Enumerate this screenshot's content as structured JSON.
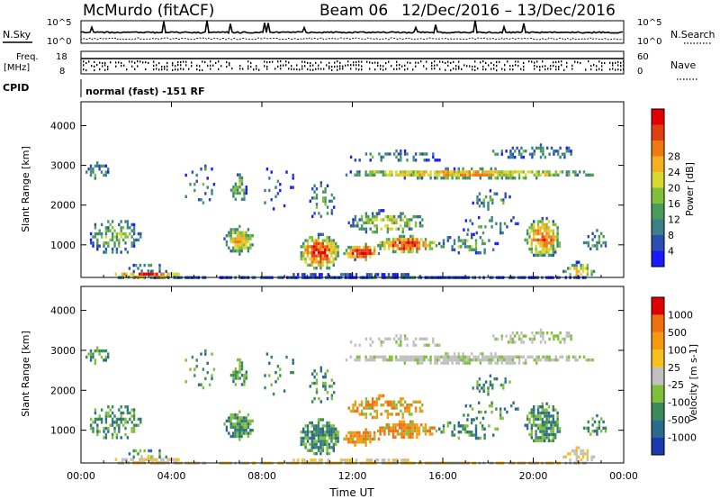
{
  "header": {
    "station": "McMurdo (fitACF)",
    "beam": "Beam 06",
    "date_range": "12/Dec/2016 – 13/Dec/2016"
  },
  "top_panels": {
    "nsky_label": "N.Sky",
    "nsearch_label": "N.Search",
    "nsky_ticks": [
      "10^5",
      "10^0"
    ],
    "nsearch_ticks": [
      "10^5",
      "10^0"
    ],
    "freq_label_top": "Freq.",
    "freq_label_unit": "[MHz]",
    "freq_ticks": [
      "18",
      "8"
    ],
    "nave_label": "Nave",
    "nave_ticks": [
      "60",
      "0"
    ],
    "cpid_label": "CPID",
    "cpid_text": "normal (fast) -151 RF"
  },
  "chart_data": [
    {
      "type": "heatmap",
      "title": "",
      "quantity": "Power",
      "xlabel": "Time UT",
      "ylabel": "Slant Range [km]",
      "x_ticks": [
        "00:00",
        "04:00",
        "08:00",
        "12:00",
        "16:00",
        "20:00",
        "00:00"
      ],
      "y_ticks": [
        "1000",
        "2000",
        "3000",
        "4000"
      ],
      "xlim_hours": [
        0,
        24
      ],
      "ylim_km": [
        180,
        4600
      ],
      "colorbar": {
        "label": "Power [dB]",
        "ticks": [
          "4",
          "8",
          "12",
          "16",
          "20",
          "24",
          "28"
        ],
        "colors": [
          "#1a1aff",
          "#2a4fb0",
          "#3a7f8a",
          "#4a9a5a",
          "#7fbf3a",
          "#d8d830",
          "#f5b020",
          "#f07a10",
          "#e04010",
          "#e00000"
        ]
      }
    },
    {
      "type": "heatmap",
      "title": "",
      "quantity": "Velocity",
      "xlabel": "Time UT",
      "ylabel": "Slant Range [km]",
      "x_ticks": [
        "00:00",
        "04:00",
        "08:00",
        "12:00",
        "16:00",
        "20:00",
        "00:00"
      ],
      "y_ticks": [
        "1000",
        "2000",
        "3000",
        "4000"
      ],
      "xlim_hours": [
        0,
        24
      ],
      "ylim_km": [
        180,
        4600
      ],
      "colorbar": {
        "label": "Velocity [m s-1]",
        "ticks": [
          "1000",
          "500",
          "100",
          "25",
          "-25",
          "-100",
          "-500",
          "-1000"
        ],
        "colors": [
          "#1a3ab0",
          "#2a6a8a",
          "#3a8a5a",
          "#7fbf3a",
          "#c0c0c0",
          "#f5c020",
          "#f59a10",
          "#f07010",
          "#e00000"
        ]
      }
    }
  ],
  "colors": {
    "bg": "#ffffff",
    "axis": "#000000",
    "ground_scatter_gray": "#c0c0c0"
  }
}
